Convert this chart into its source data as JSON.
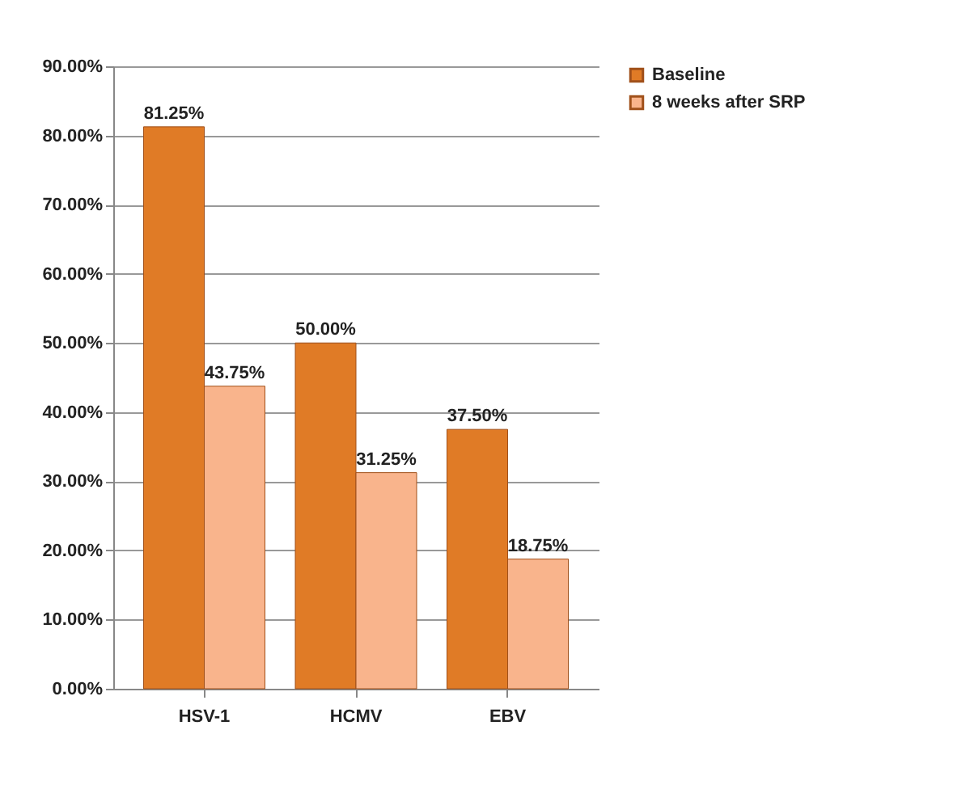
{
  "chart_data": {
    "type": "bar",
    "categories": [
      "HSV-1",
      "HCMV",
      "EBV"
    ],
    "series": [
      {
        "name": "Baseline",
        "color": "#e07b26",
        "values": [
          81.25,
          50,
          37.5
        ],
        "value_labels": [
          "81.25%",
          "50.00%",
          "37.50%"
        ]
      },
      {
        "name": "8 weeks after SRP",
        "color": "#f9b48c",
        "values": [
          43.75,
          31.25,
          18.75
        ],
        "value_labels": [
          "43.75%",
          "31.25%",
          "18.75%"
        ]
      }
    ],
    "ylim": [
      0,
      90
    ],
    "yticks": [
      {
        "value": 0,
        "label": "0.00%"
      },
      {
        "value": 10,
        "label": "10.00%"
      },
      {
        "value": 20,
        "label": "20.00%"
      },
      {
        "value": 30,
        "label": "30.00%"
      },
      {
        "value": 40,
        "label": "40.00%"
      },
      {
        "value": 50,
        "label": "50.00%"
      },
      {
        "value": 60,
        "label": "60.00%"
      },
      {
        "value": 70,
        "label": "70.00%"
      },
      {
        "value": 80,
        "label": "80.00%"
      },
      {
        "value": 90,
        "label": "90.00%"
      }
    ],
    "grid": "y",
    "legend": "right"
  }
}
